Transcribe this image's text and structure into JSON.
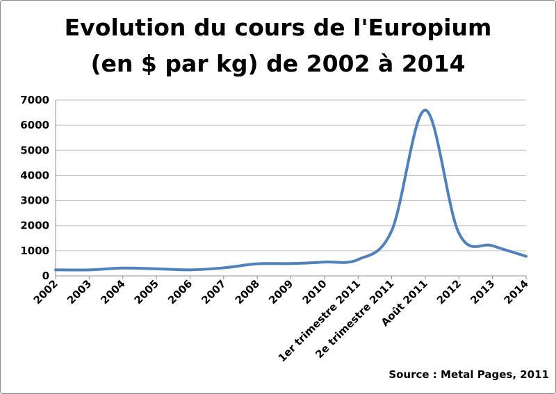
{
  "chart_data": {
    "type": "line",
    "title_line1": "Evolution du cours de l'Europium",
    "title_line2": "(en $ par kg) de 2002 à 2014",
    "source": "Source : Metal Pages, 2011",
    "categories": [
      "2002",
      "2003",
      "2004",
      "2005",
      "2006",
      "2007",
      "2008",
      "2009",
      "2010",
      "1er trimestre 2011",
      "2e trimestre 2011",
      "Août 2011",
      "2012",
      "2013",
      "2014"
    ],
    "series": [
      {
        "values": [
          240,
          240,
          310,
          280,
          240,
          320,
          480,
          490,
          550,
          650,
          1800,
          6600,
          1700,
          1200,
          780
        ]
      }
    ],
    "ylim": [
      0,
      7000
    ],
    "yticks": [
      0,
      1000,
      2000,
      3000,
      4000,
      5000,
      6000,
      7000
    ],
    "grid": "horizontal",
    "legend": "none",
    "line_color": "#4f81bd",
    "grid_color": "#bfbfbf"
  }
}
